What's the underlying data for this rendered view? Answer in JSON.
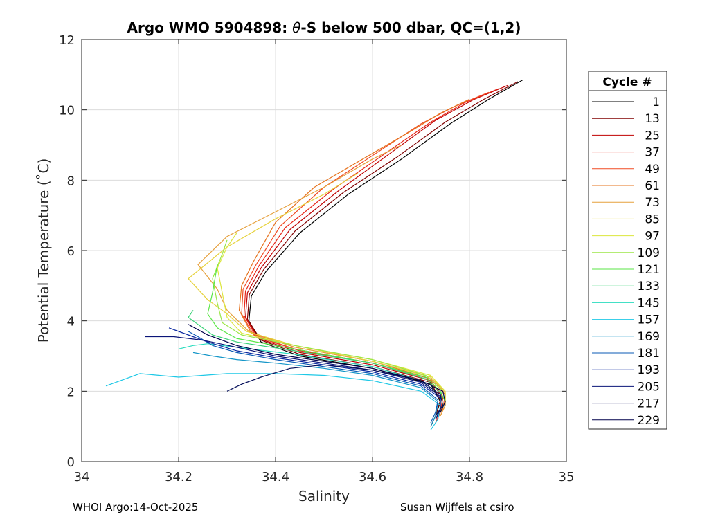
{
  "chart_data": {
    "type": "line",
    "title_prefix": "Argo WMO 5904898: ",
    "title_theta": "θ",
    "title_suffix": "-S below 500 dbar,  QC=(1,2)",
    "xlabel": "Salinity",
    "ylabel": "Potential Temperature (˚C)",
    "xlim": [
      34,
      35
    ],
    "ylim": [
      0,
      12
    ],
    "xticks": [
      34,
      34.2,
      34.4,
      34.6,
      34.8,
      35
    ],
    "xtick_labels": [
      "34",
      "34.2",
      "34.4",
      "34.6",
      "34.8",
      "35"
    ],
    "yticks": [
      0,
      2,
      4,
      6,
      8,
      10,
      12
    ],
    "ytick_labels": [
      "0",
      "2",
      "4",
      "6",
      "8",
      "10",
      "12"
    ],
    "grid": true,
    "colormap": "jet",
    "legend_title": "Cycle #",
    "legend_position": "right outside",
    "legend_entries": [
      "1",
      "13",
      "25",
      "37",
      "49",
      "61",
      "73",
      "85",
      "97",
      "109",
      "121",
      "133",
      "145",
      "157",
      "169",
      "181",
      "193",
      "205",
      "217",
      "229"
    ],
    "legend_colors": [
      "#000000",
      "#800000",
      "#c00000",
      "#e8281a",
      "#f04a22",
      "#e6731e",
      "#e6a03c",
      "#e6d23c",
      "#dce63c",
      "#9be646",
      "#5ae646",
      "#3cd278",
      "#28dcbe",
      "#1ec8e6",
      "#1496c8",
      "#0a5ab4",
      "#0a28a0",
      "#0a1478",
      "#050f5a",
      "#00004b"
    ],
    "series": [
      {
        "name": "cycle 1",
        "color": "#000000",
        "x": [
          34.72,
          34.73,
          34.74,
          34.72,
          34.6,
          34.45,
          34.37,
          34.345,
          34.35,
          34.38,
          34.45,
          34.55,
          34.66,
          34.76,
          34.84,
          34.91
        ],
        "y": [
          1.0,
          1.3,
          1.7,
          2.2,
          2.65,
          3.0,
          3.4,
          4.0,
          4.7,
          5.4,
          6.5,
          7.6,
          8.6,
          9.6,
          10.3,
          10.85
        ]
      },
      {
        "name": "cycle 13",
        "color": "#800000",
        "x": [
          34.72,
          34.73,
          34.74,
          34.72,
          34.6,
          34.45,
          34.37,
          34.342,
          34.346,
          34.375,
          34.44,
          34.54,
          34.65,
          34.75,
          34.83,
          34.9
        ],
        "y": [
          1.0,
          1.3,
          1.75,
          2.25,
          2.7,
          3.05,
          3.45,
          4.05,
          4.75,
          5.45,
          6.55,
          7.65,
          8.65,
          9.65,
          10.3,
          10.8
        ]
      },
      {
        "name": "cycle 25",
        "color": "#c00000",
        "x": [
          34.73,
          34.74,
          34.745,
          34.72,
          34.6,
          34.45,
          34.365,
          34.338,
          34.342,
          34.37,
          34.43,
          34.53,
          34.63,
          34.73,
          34.81,
          34.88
        ],
        "y": [
          1.1,
          1.4,
          1.8,
          2.3,
          2.75,
          3.1,
          3.5,
          4.1,
          4.8,
          5.5,
          6.6,
          7.7,
          8.7,
          9.7,
          10.3,
          10.7
        ]
      },
      {
        "name": "cycle 37",
        "color": "#e8281a",
        "x": [
          34.73,
          34.74,
          34.745,
          34.72,
          34.6,
          34.45,
          34.36,
          34.335,
          34.338,
          34.365,
          34.42,
          34.52,
          34.62,
          34.72,
          34.79,
          34.86
        ],
        "y": [
          1.1,
          1.4,
          1.85,
          2.3,
          2.8,
          3.15,
          3.55,
          4.15,
          4.85,
          5.55,
          6.65,
          7.75,
          8.7,
          9.65,
          10.2,
          10.6
        ]
      },
      {
        "name": "cycle 49",
        "color": "#f04a22",
        "x": [
          34.73,
          34.745,
          34.75,
          34.72,
          34.6,
          34.44,
          34.355,
          34.33,
          34.333,
          34.36,
          34.41,
          34.5,
          34.6,
          34.7,
          34.77,
          34.84
        ],
        "y": [
          1.2,
          1.5,
          1.9,
          2.35,
          2.8,
          3.2,
          3.6,
          4.2,
          4.9,
          5.6,
          6.7,
          7.8,
          8.7,
          9.6,
          10.1,
          10.5
        ]
      },
      {
        "name": "cycle 61",
        "color": "#e6731e",
        "x": [
          34.74,
          34.75,
          34.75,
          34.72,
          34.6,
          34.44,
          34.35,
          34.325,
          34.33,
          34.355,
          34.4,
          34.48,
          34.58,
          34.68,
          34.74,
          34.8
        ],
        "y": [
          1.3,
          1.6,
          1.9,
          2.35,
          2.85,
          3.25,
          3.65,
          4.3,
          5.0,
          5.7,
          6.8,
          7.8,
          8.6,
          9.4,
          9.9,
          10.3
        ]
      },
      {
        "name": "cycle 73",
        "color": "#e6a03c",
        "x": [
          34.74,
          34.75,
          34.75,
          34.72,
          34.6,
          34.44,
          34.345,
          34.3,
          34.28,
          34.24,
          34.3,
          34.4,
          34.5,
          34.6,
          34.66
        ],
        "y": [
          1.3,
          1.6,
          1.95,
          2.4,
          2.85,
          3.25,
          3.7,
          4.3,
          4.9,
          5.6,
          6.4,
          7.1,
          7.8,
          8.6,
          9.0
        ]
      },
      {
        "name": "cycle 85",
        "color": "#e6d23c",
        "x": [
          34.74,
          34.75,
          34.75,
          34.72,
          34.6,
          34.44,
          34.34,
          34.3,
          34.26,
          34.22,
          34.3,
          34.4,
          34.5,
          34.57
        ],
        "y": [
          1.4,
          1.7,
          2.0,
          2.4,
          2.85,
          3.3,
          3.7,
          4.2,
          4.6,
          5.2,
          6.1,
          6.9,
          7.6,
          8.2
        ]
      },
      {
        "name": "cycle 97",
        "color": "#dce63c",
        "x": [
          34.74,
          34.75,
          34.75,
          34.72,
          34.6,
          34.44,
          34.33,
          34.3,
          34.29,
          34.28,
          34.3,
          34.32
        ],
        "y": [
          1.4,
          1.7,
          2.0,
          2.45,
          2.9,
          3.3,
          3.65,
          4.1,
          4.8,
          5.5,
          6.1,
          6.5
        ]
      },
      {
        "name": "cycle 109",
        "color": "#9be646",
        "x": [
          34.74,
          34.75,
          34.745,
          34.71,
          34.6,
          34.44,
          34.33,
          34.29,
          34.28,
          34.27,
          34.29,
          34.3
        ],
        "y": [
          1.4,
          1.7,
          2.0,
          2.45,
          2.9,
          3.3,
          3.6,
          3.95,
          4.5,
          5.2,
          5.9,
          6.3
        ]
      },
      {
        "name": "cycle 121",
        "color": "#5ae646",
        "x": [
          34.74,
          34.75,
          34.74,
          34.71,
          34.6,
          34.44,
          34.32,
          34.28,
          34.26,
          34.27,
          34.28
        ],
        "y": [
          1.4,
          1.7,
          2.0,
          2.4,
          2.8,
          3.2,
          3.5,
          3.8,
          4.2,
          4.8,
          5.6
        ]
      },
      {
        "name": "cycle 133",
        "color": "#3cd278",
        "x": [
          34.73,
          34.745,
          34.74,
          34.71,
          34.6,
          34.44,
          34.32,
          34.27,
          34.24,
          34.22,
          34.23
        ],
        "y": [
          1.3,
          1.6,
          1.95,
          2.35,
          2.8,
          3.15,
          3.4,
          3.6,
          3.9,
          4.1,
          4.3
        ]
      },
      {
        "name": "cycle 145",
        "color": "#28dcbe",
        "x": [
          34.73,
          34.74,
          34.74,
          34.7,
          34.6,
          34.44,
          34.32,
          34.26,
          34.23,
          34.2
        ],
        "y": [
          1.2,
          1.5,
          1.9,
          2.3,
          2.7,
          3.05,
          3.25,
          3.35,
          3.3,
          3.2
        ]
      },
      {
        "name": "cycle 157",
        "color": "#1ec8e6",
        "x": [
          34.72,
          34.735,
          34.74,
          34.7,
          34.6,
          34.5,
          34.4,
          34.3,
          34.2,
          34.12,
          34.08,
          34.05
        ],
        "y": [
          0.9,
          1.2,
          1.6,
          2.0,
          2.3,
          2.45,
          2.5,
          2.5,
          2.4,
          2.5,
          2.3,
          2.15
        ]
      },
      {
        "name": "cycle 169",
        "color": "#1496c8",
        "x": [
          34.72,
          34.73,
          34.735,
          34.7,
          34.6,
          34.5,
          34.4,
          34.32,
          34.27,
          34.23
        ],
        "y": [
          1.0,
          1.3,
          1.7,
          2.1,
          2.45,
          2.65,
          2.8,
          2.9,
          3.0,
          3.1
        ]
      },
      {
        "name": "cycle 181",
        "color": "#0a5ab4",
        "x": [
          34.72,
          34.73,
          34.735,
          34.7,
          34.6,
          34.5,
          34.4,
          34.32,
          34.27,
          34.24,
          34.22
        ],
        "y": [
          1.1,
          1.4,
          1.75,
          2.15,
          2.5,
          2.7,
          2.9,
          3.1,
          3.3,
          3.55,
          3.7
        ]
      },
      {
        "name": "cycle 193",
        "color": "#0a28a0",
        "x": [
          34.73,
          34.74,
          34.74,
          34.7,
          34.6,
          34.5,
          34.4,
          34.32,
          34.26,
          34.22,
          34.18
        ],
        "y": [
          1.2,
          1.5,
          1.8,
          2.2,
          2.55,
          2.75,
          2.95,
          3.15,
          3.4,
          3.6,
          3.8
        ]
      },
      {
        "name": "cycle 205",
        "color": "#0a1478",
        "x": [
          34.73,
          34.74,
          34.74,
          34.7,
          34.6,
          34.5,
          34.4,
          34.32,
          34.25,
          34.19,
          34.13
        ],
        "y": [
          1.2,
          1.5,
          1.85,
          2.25,
          2.6,
          2.8,
          3.0,
          3.25,
          3.45,
          3.55,
          3.55
        ]
      },
      {
        "name": "cycle 217",
        "color": "#050f5a",
        "x": [
          34.73,
          34.745,
          34.74,
          34.7,
          34.6,
          34.5,
          34.43,
          34.37,
          34.33,
          34.3
        ],
        "y": [
          1.3,
          1.6,
          1.9,
          2.3,
          2.6,
          2.75,
          2.65,
          2.4,
          2.2,
          2.0
        ]
      },
      {
        "name": "cycle 229",
        "color": "#00004b",
        "x": [
          34.74,
          34.75,
          34.745,
          34.7,
          34.6,
          34.5,
          34.4,
          34.32,
          34.26,
          34.22
        ],
        "y": [
          1.4,
          1.7,
          2.0,
          2.3,
          2.65,
          2.85,
          3.05,
          3.3,
          3.6,
          3.9
        ]
      }
    ]
  },
  "footer": {
    "left": "WHOI Argo:14-Oct-2025",
    "right": "Susan Wijffels at csiro"
  }
}
